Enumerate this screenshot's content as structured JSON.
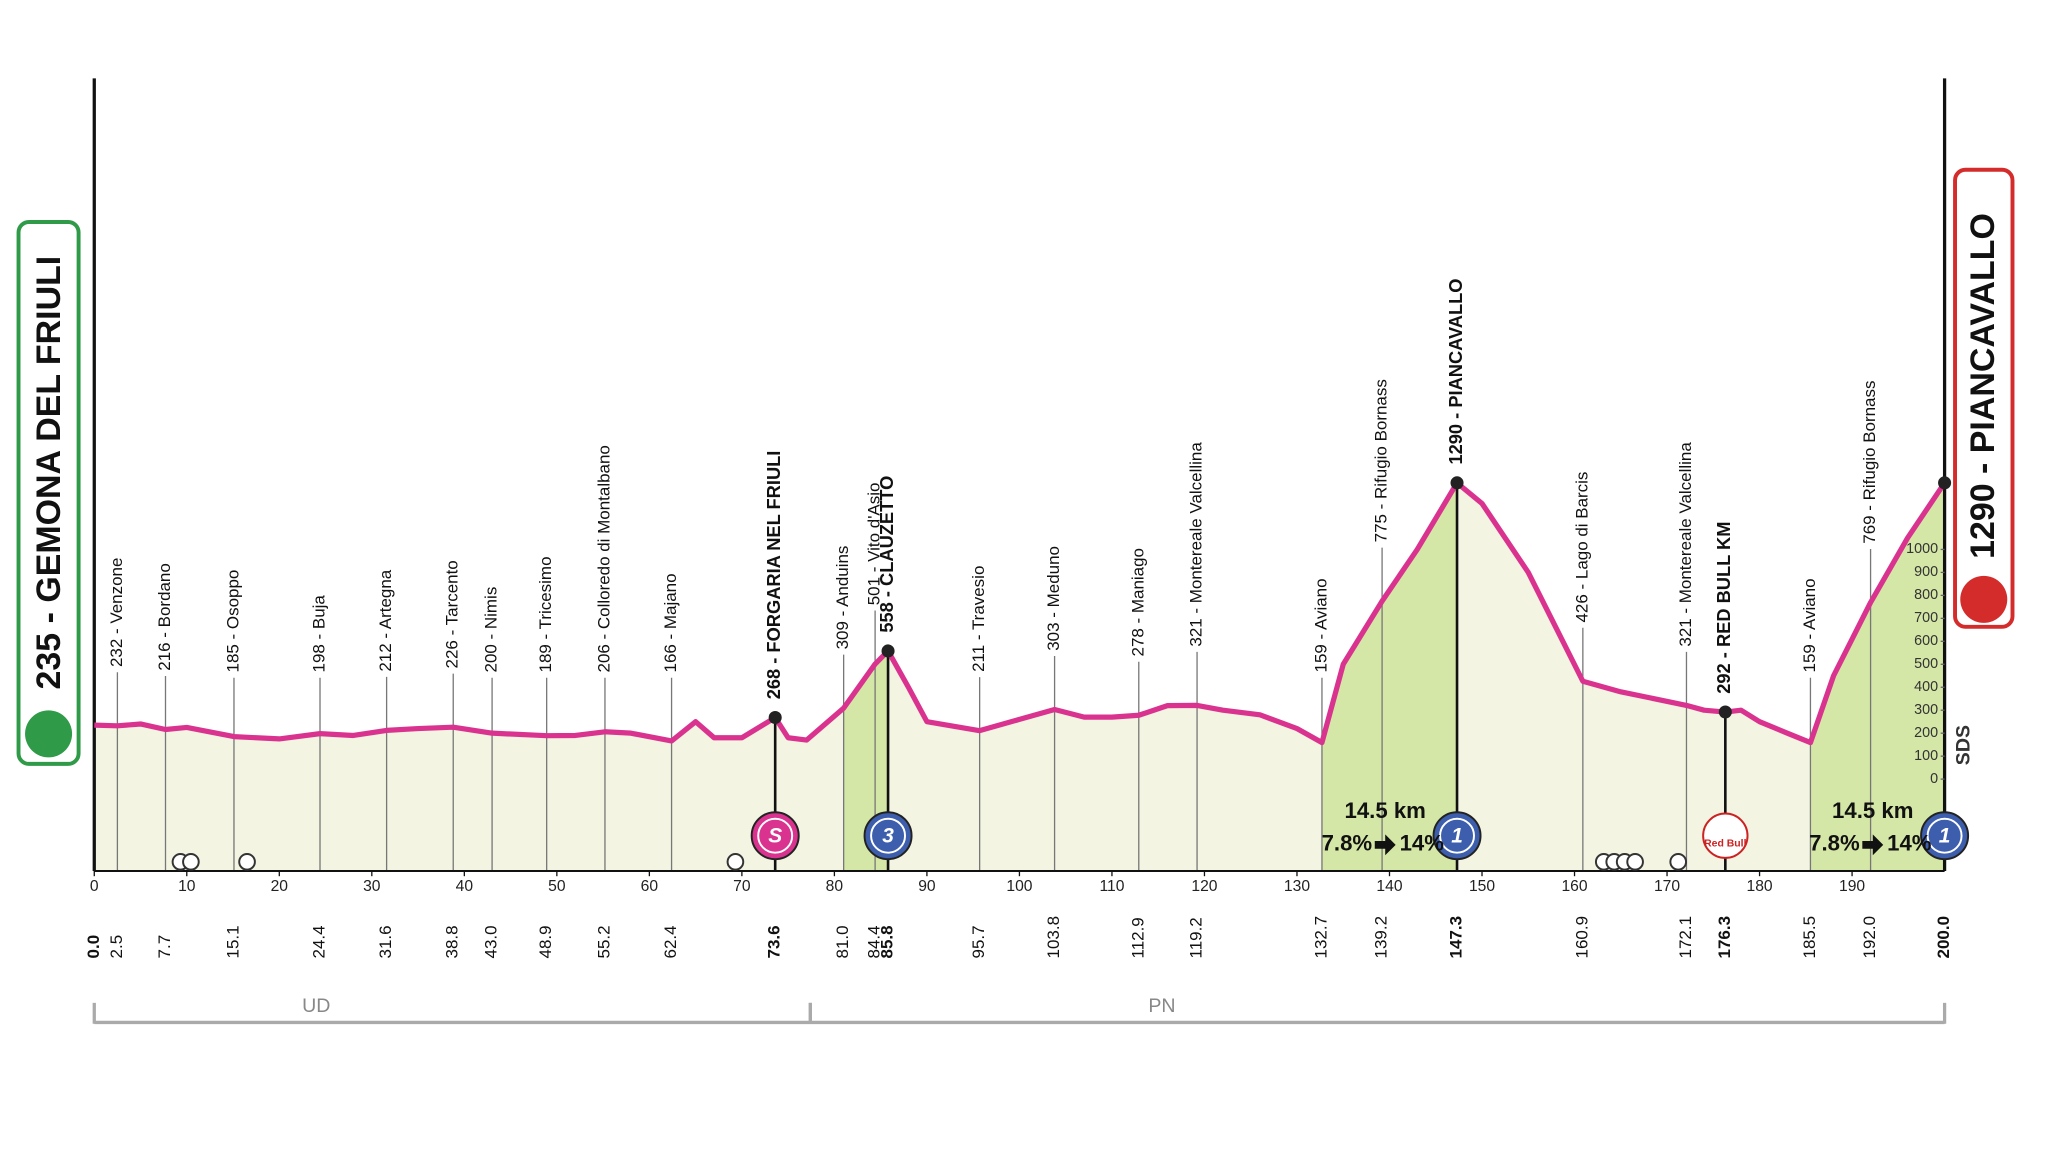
{
  "chart_data": {
    "type": "area",
    "color": "#d9338f",
    "fill": "#f3f5e2",
    "climb_fill": "#d5e7a7",
    "x": [
      0,
      2.5,
      5,
      7.7,
      10,
      15.1,
      20,
      24.4,
      28,
      31.6,
      35,
      38.8,
      43,
      48.9,
      52,
      55.2,
      58,
      62.4,
      65,
      67,
      70,
      73.6,
      75,
      77,
      81,
      84.4,
      85.8,
      88,
      90,
      95.7,
      100,
      103.8,
      107,
      110,
      112.9,
      116,
      119.2,
      122,
      126,
      130,
      132.7,
      135,
      139.2,
      143,
      147.3,
      150,
      155,
      160.9,
      165,
      172.1,
      174,
      176.3,
      178,
      180,
      183,
      185.5,
      188,
      192,
      196,
      200
    ],
    "values": [
      235,
      232,
      240,
      216,
      225,
      185,
      175,
      198,
      190,
      212,
      220,
      226,
      200,
      189,
      190,
      206,
      200,
      166,
      250,
      180,
      180,
      268,
      180,
      170,
      309,
      501,
      558,
      400,
      250,
      211,
      260,
      303,
      270,
      270,
      278,
      320,
      321,
      300,
      280,
      220,
      159,
      500,
      775,
      1000,
      1290,
      1200,
      900,
      426,
      380,
      321,
      300,
      292,
      300,
      250,
      200,
      159,
      450,
      769,
      1050,
      1290
    ],
    "xlim": [
      0,
      200
    ],
    "xticks": [
      0,
      10,
      20,
      30,
      40,
      50,
      60,
      70,
      80,
      90,
      100,
      110,
      120,
      130,
      140,
      150,
      160,
      170,
      180,
      190
    ],
    "ylim": [
      -400,
      1300
    ],
    "yticks": [
      0,
      100,
      200,
      300,
      400,
      500,
      600,
      700,
      800,
      900,
      1000
    ],
    "start_label": "235 - GEMONA DEL FRIULI",
    "finish_label": "1290 - PIANCAVALLO",
    "logo": "SDS",
    "waypoints": [
      {
        "km": {
          "value": 0,
          "label": "0.0"
        },
        "bold": true
      },
      {
        "km": 2.5,
        "label": "232 - Venzone"
      },
      {
        "km": 7.7,
        "label": "216 - Bordano"
      },
      {
        "km": 15.1,
        "label": "185 - Osoppo"
      },
      {
        "km": 24.4,
        "label": "198 - Buja"
      },
      {
        "km": 31.6,
        "label": "212 - Artegna"
      },
      {
        "km": 38.8,
        "label": "226 - Tarcento"
      },
      {
        "km": {
          "value": 43,
          "label": "43.0"
        },
        "label": "200 - Nimis"
      },
      {
        "km": 48.9,
        "label": "189 - Tricesimo"
      },
      {
        "km": 55.2,
        "label": "206 - Colloredo di Montalbano"
      },
      {
        "km": 62.4,
        "label": "166 - Majano"
      },
      {
        "km": 73.6,
        "label": "268 - FORGARIA NEL FRIULI",
        "bold": true,
        "icon": {
          "kind": "sprint",
          "text": "S"
        }
      },
      {
        "km": {
          "value": 81,
          "label": "81.0"
        },
        "label": "309 - Anduins"
      },
      {
        "km": 84.4,
        "label": "501 - Vito d'Asio"
      },
      {
        "km": 85.8,
        "label": "558 - CLAUZETTO",
        "bold": true,
        "icon": {
          "kind": "kom",
          "text": "3"
        }
      },
      {
        "km": 95.7,
        "label": "211 - Travesio"
      },
      {
        "km": 103.8,
        "label": "303 - Meduno"
      },
      {
        "km": 112.9,
        "label": "278 - Maniago"
      },
      {
        "km": 119.2,
        "label": "321 - Montereale Valcellina"
      },
      {
        "km": 132.7,
        "label": "159 - Aviano"
      },
      {
        "km": 139.2,
        "label": "775 - Rifugio Bornass"
      },
      {
        "km": 147.3,
        "label": "1290 - PIANCAVALLO",
        "bold": true,
        "icon": {
          "kind": "kom",
          "text": "1"
        }
      },
      {
        "km": 160.9,
        "label": "426 - Lago di Barcis"
      },
      {
        "km": 172.1,
        "label": "321 - Montereale Valcellina"
      },
      {
        "km": 176.3,
        "label": "292 - RED BULL KM",
        "bold": true,
        "icon": {
          "kind": "bonus",
          "text": "Red Bull"
        }
      },
      {
        "km": 185.5,
        "label": "159 - Aviano"
      },
      {
        "km": {
          "value": 192,
          "label": "192.0"
        },
        "label": "769 - Rifugio Bornass"
      },
      {
        "km": {
          "value": 200,
          "label": "200.0"
        },
        "bold": true,
        "icon": {
          "kind": "kom",
          "text": "1"
        }
      }
    ],
    "climbs": [
      {
        "from": 81,
        "to": 85.8
      },
      {
        "from": 132.7,
        "to": 147.3,
        "length": "14.5 km",
        "avg": "7.8%",
        "max": "14%"
      },
      {
        "from": 185.5,
        "to": 200,
        "length": "14.5 km",
        "avg": "7.8%",
        "max": "14%"
      }
    ],
    "regions": [
      {
        "name": "UD",
        "from": 0,
        "to": 77.4
      },
      {
        "name": "PN",
        "from": 77.4,
        "to": 200
      }
    ]
  }
}
